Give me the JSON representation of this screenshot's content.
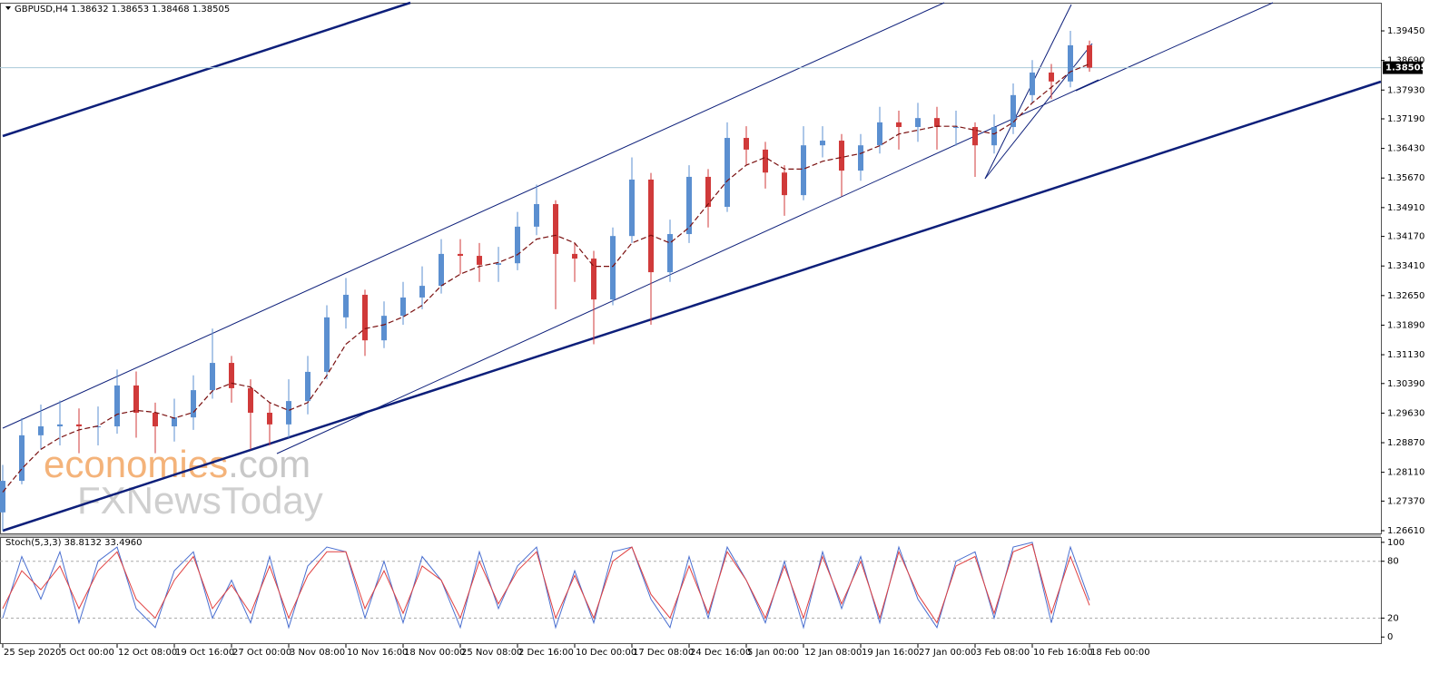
{
  "chart_data": [
    {
      "type": "candlestick",
      "title": "GBPUSD,H4  1.38632 1.38653 1.38468 1.38505",
      "categories": [
        "25 Sep 2020",
        null,
        null,
        "5 Oct 00:00",
        null,
        null,
        "12 Oct 08:00",
        null,
        null,
        "19 Oct 16:00",
        null,
        null,
        "27 Oct 00:00",
        null,
        null,
        "3 Nov 08:00",
        null,
        null,
        "10 Nov 16:00",
        null,
        null,
        "18 Nov 00:00",
        null,
        null,
        "25 Nov 08:00",
        null,
        null,
        "2 Dec 16:00",
        null,
        null,
        "10 Dec 00:00",
        null,
        null,
        "17 Dec 08:00",
        null,
        null,
        "24 Dec 16:00",
        null,
        null,
        "5 Jan 00:00",
        null,
        null,
        "12 Jan 08:00",
        null,
        null,
        "19 Jan 16:00",
        null,
        null,
        "27 Jan 00:00",
        null,
        null,
        "3 Feb 08:00",
        null,
        null,
        "10 Feb 16:00",
        null,
        null,
        "18 Feb 00:00"
      ],
      "open": [
        1.2708,
        1.2789,
        1.2906,
        1.2929,
        1.2934,
        1.2929,
        1.2929,
        1.3034,
        1.2964,
        1.2929,
        1.2952,
        1.3022,
        1.3092,
        1.3027,
        1.2964,
        1.2934,
        1.2994,
        1.3069,
        1.3209,
        1.3267,
        1.315,
        1.3213,
        1.326,
        1.329,
        1.3372,
        1.3367,
        1.3344,
        1.3348,
        1.3442,
        1.35,
        1.3372,
        1.336,
        1.3255,
        1.3418,
        1.3563,
        1.3325,
        1.3423,
        1.357,
        1.3493,
        1.367,
        1.364,
        1.3581,
        1.3523,
        1.3651,
        1.3663,
        1.3586,
        1.3651,
        1.371,
        1.3698,
        1.3721,
        1.3698,
        1.3698,
        1.3651,
        1.3698,
        1.378,
        1.3838,
        1.3815,
        1.3908
      ],
      "high": [
        1.283,
        1.295,
        1.2985,
        1.2995,
        1.2975,
        1.298,
        1.3075,
        1.307,
        1.299,
        1.3,
        1.306,
        1.318,
        1.311,
        1.305,
        1.299,
        1.305,
        1.311,
        1.324,
        1.331,
        1.328,
        1.325,
        1.33,
        1.334,
        1.341,
        1.341,
        1.34,
        1.339,
        1.348,
        1.355,
        1.351,
        1.34,
        1.338,
        1.344,
        1.362,
        1.358,
        1.346,
        1.36,
        1.359,
        1.371,
        1.37,
        1.366,
        1.36,
        1.37,
        1.37,
        1.368,
        1.368,
        1.375,
        1.374,
        1.376,
        1.375,
        1.374,
        1.371,
        1.373,
        1.381,
        1.387,
        1.386,
        1.3945,
        1.392
      ],
      "low": [
        1.2661,
        1.278,
        1.287,
        1.288,
        1.286,
        1.288,
        1.291,
        1.29,
        1.286,
        1.289,
        1.292,
        1.3,
        1.299,
        1.287,
        1.288,
        1.29,
        1.296,
        1.305,
        1.318,
        1.311,
        1.313,
        1.319,
        1.323,
        1.327,
        1.332,
        1.33,
        1.33,
        1.333,
        1.342,
        1.323,
        1.33,
        1.314,
        1.324,
        1.34,
        1.319,
        1.33,
        1.34,
        1.344,
        1.348,
        1.36,
        1.354,
        1.347,
        1.351,
        1.362,
        1.352,
        1.356,
        1.363,
        1.364,
        1.366,
        1.364,
        1.365,
        1.357,
        1.363,
        1.368,
        1.376,
        1.377,
        1.38,
        1.384
      ],
      "close": [
        1.2789,
        1.2906,
        1.2929,
        1.2934,
        1.2929,
        1.2929,
        1.3034,
        1.2964,
        1.2929,
        1.2952,
        1.3022,
        1.3092,
        1.3027,
        1.2964,
        1.2934,
        1.2994,
        1.3069,
        1.3209,
        1.3267,
        1.315,
        1.3213,
        1.326,
        1.329,
        1.3372,
        1.3367,
        1.3344,
        1.3348,
        1.3442,
        1.35,
        1.3372,
        1.336,
        1.3255,
        1.3418,
        1.3563,
        1.3325,
        1.3423,
        1.357,
        1.3493,
        1.367,
        1.364,
        1.3581,
        1.3523,
        1.3651,
        1.3663,
        1.3586,
        1.3651,
        1.371,
        1.3698,
        1.3721,
        1.3698,
        1.3698,
        1.3651,
        1.3698,
        1.378,
        1.3838,
        1.3815,
        1.3908,
        1.38505
      ],
      "up_color": "#5b8fd0",
      "down_color": "#d03a3a",
      "ma": {
        "color": "#7a1010",
        "values": [
          1.276,
          1.282,
          1.287,
          1.29,
          1.292,
          1.293,
          1.296,
          1.297,
          1.2965,
          1.295,
          1.2965,
          1.302,
          1.304,
          1.303,
          1.299,
          1.297,
          1.299,
          1.306,
          1.314,
          1.318,
          1.319,
          1.321,
          1.324,
          1.329,
          1.332,
          1.334,
          1.335,
          1.337,
          1.341,
          1.342,
          1.34,
          1.334,
          1.334,
          1.34,
          1.342,
          1.34,
          1.344,
          1.35,
          1.356,
          1.36,
          1.362,
          1.359,
          1.359,
          1.361,
          1.362,
          1.363,
          1.365,
          1.368,
          1.369,
          1.37,
          1.37,
          1.369,
          1.368,
          1.371,
          1.376,
          1.38,
          1.384,
          1.386
        ]
      },
      "last_price": {
        "value": 1.38505,
        "label": "1.38505"
      },
      "ylim": [
        1.2654,
        1.4015
      ],
      "yticks": [
        {
          "value": 1.2661,
          "label": "1.26610"
        },
        {
          "value": 1.2737,
          "label": "1.27370"
        },
        {
          "value": 1.2811,
          "label": "1.28110"
        },
        {
          "value": 1.2887,
          "label": "1.28870"
        },
        {
          "value": 1.2963,
          "label": "1.29630"
        },
        {
          "value": 1.3039,
          "label": "1.30390"
        },
        {
          "value": 1.3113,
          "label": "1.31130"
        },
        {
          "value": 1.3189,
          "label": "1.31890"
        },
        {
          "value": 1.3265,
          "label": "1.32650"
        },
        {
          "value": 1.3341,
          "label": "1.33410"
        },
        {
          "value": 1.3417,
          "label": "1.34170"
        },
        {
          "value": 1.3491,
          "label": "1.34910"
        },
        {
          "value": 1.3567,
          "label": "1.35670"
        },
        {
          "value": 1.3643,
          "label": "1.36430"
        },
        {
          "value": 1.3719,
          "label": "1.37190"
        },
        {
          "value": 1.3793,
          "label": "1.37930"
        },
        {
          "value": 1.3869,
          "label": "1.38690"
        },
        {
          "value": 1.3945,
          "label": "1.39450"
        }
      ],
      "watermark": [
        "economies",
        ".com",
        "FXNewsToday"
      ]
    },
    {
      "type": "line",
      "title": "Stoch(5,3,3) 38.8132 33.4960",
      "series": [
        {
          "color": "#4a6fd0",
          "values": [
            20,
            85,
            40,
            90,
            15,
            80,
            95,
            30,
            10,
            70,
            90,
            20,
            60,
            15,
            85,
            10,
            75,
            95,
            90,
            20,
            80,
            15,
            85,
            60,
            10,
            90,
            30,
            75,
            95,
            10,
            70,
            15,
            90,
            95,
            40,
            10,
            85,
            20,
            95,
            60,
            15,
            80,
            10,
            90,
            30,
            85,
            15,
            95,
            40,
            10,
            80,
            90,
            20,
            95,
            100,
            15,
            95,
            38.8132
          ]
        },
        {
          "color": "#e04040",
          "values": [
            30,
            70,
            50,
            75,
            30,
            70,
            90,
            40,
            20,
            60,
            85,
            30,
            55,
            25,
            75,
            20,
            65,
            90,
            90,
            30,
            70,
            25,
            75,
            60,
            20,
            80,
            35,
            70,
            90,
            20,
            65,
            20,
            80,
            95,
            45,
            20,
            75,
            25,
            90,
            60,
            20,
            75,
            20,
            85,
            35,
            80,
            20,
            90,
            45,
            15,
            75,
            85,
            25,
            90,
            98,
            25,
            85,
            33.496
          ]
        }
      ],
      "levels": [
        20,
        80
      ],
      "ylim": [
        -6.5,
        105.6
      ],
      "yticks": [
        0,
        20,
        80,
        100
      ]
    }
  ]
}
